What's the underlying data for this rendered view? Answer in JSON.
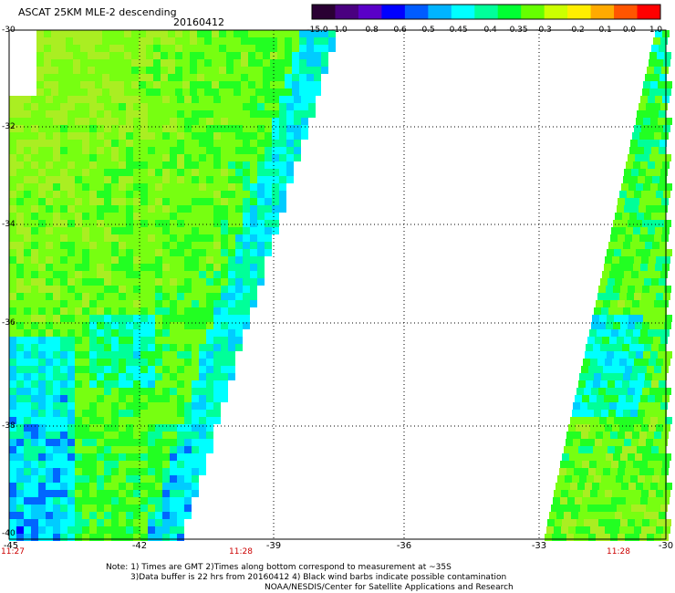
{
  "header": {
    "title": "ASCAT 25KM MLE-2 descending",
    "date": "20160412"
  },
  "colorbar": {
    "labels": [
      "-15.0",
      "-1.0",
      "-0.8",
      "-0.6",
      "-0.5",
      "-0.45",
      "-0.4",
      "-0.35",
      "-0.3",
      "-0.2",
      "-0.1",
      "0.0",
      "1.0"
    ],
    "colors": [
      "#2a0033",
      "#4a0080",
      "#5a00c8",
      "#0000ff",
      "#005cff",
      "#00b4ff",
      "#00ffff",
      "#00ff9a",
      "#00ff33",
      "#66ff00",
      "#ccff00",
      "#ffee00",
      "#ffaa00",
      "#ff5500",
      "#ff0000"
    ]
  },
  "map": {
    "lat_labels": [
      "-30",
      "-32",
      "-34",
      "-36",
      "-38",
      "-40"
    ],
    "lon_labels": [
      "-45",
      "-42",
      "-39",
      "-36",
      "-33",
      "-30"
    ],
    "times": [
      "11:27",
      "11:28",
      "11:28"
    ]
  },
  "notes": {
    "line1": "Note: 1) Times are GMT 2)Times along bottom correspond to measurement at ~35S",
    "line2": "3)Data buffer is 22 hrs from 20160412 4) Black wind barbs indicate possible contamination",
    "line3": "NOAA/NESDIS/Center for Satellite Applications and Research"
  }
}
